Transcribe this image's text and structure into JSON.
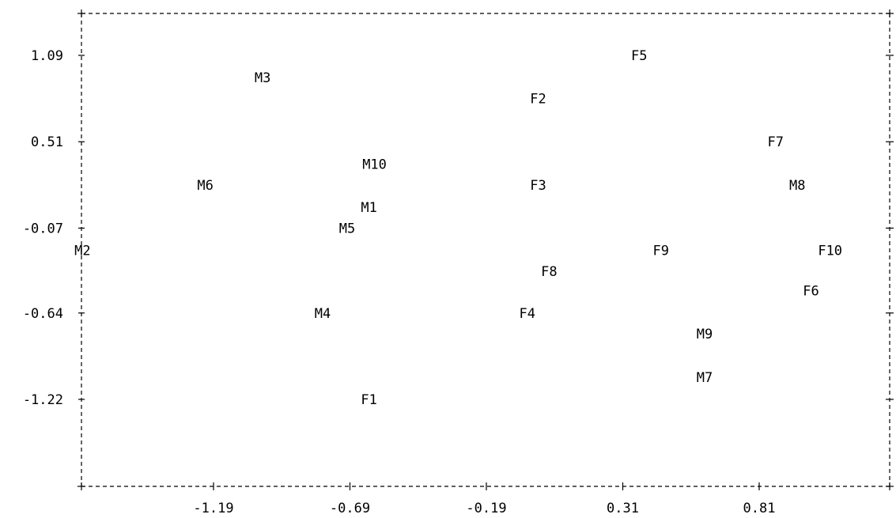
{
  "chart_data": {
    "type": "scatter",
    "title": "",
    "xlabel": "",
    "ylabel": "",
    "x_ticks": [
      -1.19,
      -0.69,
      -0.19,
      0.31,
      0.81
    ],
    "y_ticks": [
      1.09,
      0.51,
      -0.07,
      -0.64,
      -1.22
    ],
    "x_tick_labels": [
      "-1.19",
      "-0.69",
      "-0.19",
      "0.31",
      "0.81"
    ],
    "y_tick_labels": [
      "1.09",
      "0.51",
      "-0.07",
      "-0.64",
      "-1.22"
    ],
    "xlim": [
      -1.72,
      1.21
    ],
    "ylim": [
      -1.8,
      1.4
    ],
    "grid": false,
    "marker": "text-label",
    "points": [
      {
        "label": "M2",
        "x": -1.67,
        "y": -0.22
      },
      {
        "label": "M3",
        "x": -1.01,
        "y": 0.94
      },
      {
        "label": "M6",
        "x": -1.22,
        "y": 0.22
      },
      {
        "label": "M10",
        "x": -0.6,
        "y": 0.36
      },
      {
        "label": "M1",
        "x": -0.62,
        "y": 0.07
      },
      {
        "label": "M5",
        "x": -0.7,
        "y": -0.07
      },
      {
        "label": "M4",
        "x": -0.79,
        "y": -0.64
      },
      {
        "label": "F1",
        "x": -0.62,
        "y": -1.22
      },
      {
        "label": "F2",
        "x": 0.0,
        "y": 0.8
      },
      {
        "label": "F3",
        "x": 0.0,
        "y": 0.22
      },
      {
        "label": "F8",
        "x": 0.04,
        "y": -0.36
      },
      {
        "label": "F4",
        "x": -0.04,
        "y": -0.64
      },
      {
        "label": "F5",
        "x": 0.37,
        "y": 1.09
      },
      {
        "label": "F9",
        "x": 0.45,
        "y": -0.22
      },
      {
        "label": "M9",
        "x": 0.61,
        "y": -0.78
      },
      {
        "label": "M7",
        "x": 0.61,
        "y": -1.07
      },
      {
        "label": "F7",
        "x": 0.87,
        "y": 0.51
      },
      {
        "label": "M8",
        "x": 0.95,
        "y": 0.22
      },
      {
        "label": "F6",
        "x": 1.0,
        "y": -0.49
      },
      {
        "label": "F10",
        "x": 1.07,
        "y": -0.22
      }
    ]
  }
}
